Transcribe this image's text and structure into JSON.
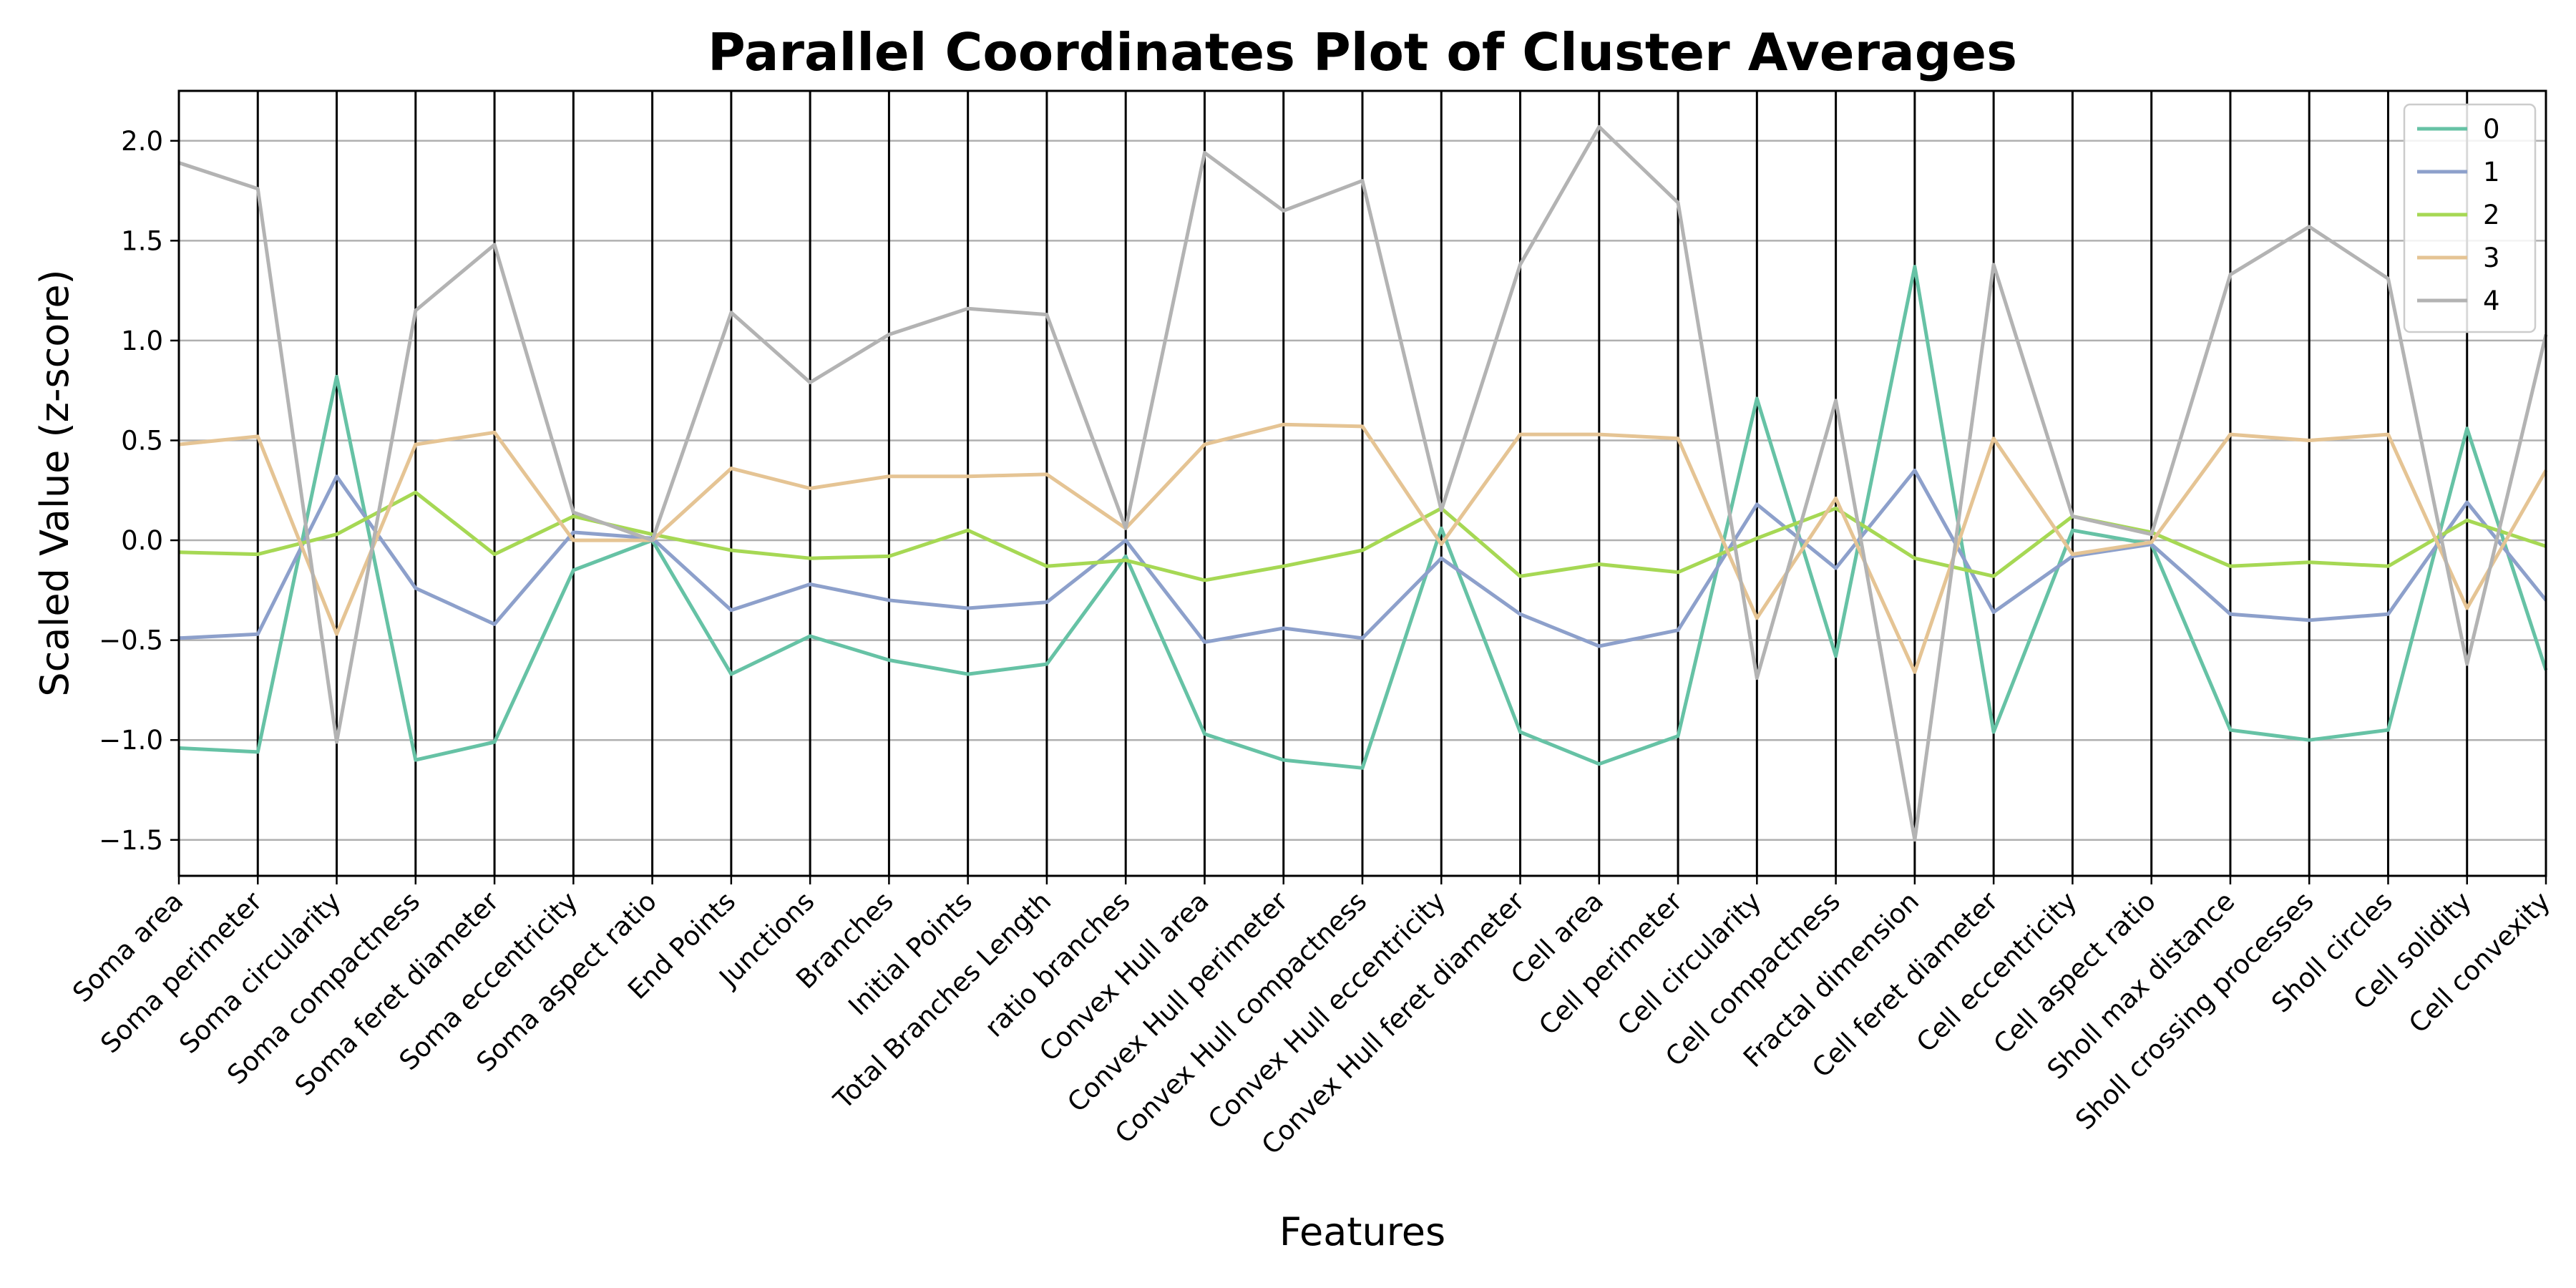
{
  "chart_data": {
    "type": "line",
    "title": "Parallel Coordinates Plot of Cluster Averages",
    "xlabel": "Features",
    "ylabel": "Scaled Value (z-score)",
    "ylim": [
      -1.68,
      2.25
    ],
    "yticks": [
      2.0,
      1.5,
      1.0,
      0.5,
      0.0,
      -0.5,
      -1.0,
      -1.5
    ],
    "ytick_labels": [
      "2.0",
      "1.5",
      "1.0",
      "0.5",
      "0.0",
      "−0.5",
      "−1.0",
      "−1.5"
    ],
    "grid": "horizontal",
    "legend_position": "top-right",
    "categories": [
      "Soma area",
      "Soma perimeter",
      "Soma circularity",
      "Soma compactness",
      "Soma feret diameter",
      "Soma eccentricity",
      "Soma aspect ratio",
      "End Points",
      "Junctions",
      "Branches",
      "Initial Points",
      "Total Branches Length",
      "ratio branches",
      "Convex Hull area",
      "Convex Hull perimeter",
      "Convex Hull compactness",
      "Convex Hull eccentricity",
      "Convex Hull feret diameter",
      "Cell area",
      "Cell perimeter",
      "Cell circularity",
      "Cell compactness",
      "Fractal dimension",
      "Cell feret diameter",
      "Cell eccentricity",
      "Cell aspect ratio",
      "Sholl max distance",
      "Sholl crossing processes",
      "Sholl circles",
      "Cell solidity",
      "Cell convexity"
    ],
    "series": [
      {
        "name": "0",
        "color": "#66c2a5",
        "values": [
          -1.04,
          -1.06,
          0.82,
          -1.1,
          -1.01,
          -0.15,
          0.0,
          -0.67,
          -0.48,
          -0.6,
          -0.67,
          -0.62,
          -0.08,
          -0.97,
          -1.1,
          -1.14,
          0.06,
          -0.96,
          -1.12,
          -0.98,
          0.71,
          -0.58,
          1.37,
          -0.96,
          0.05,
          -0.02,
          -0.95,
          -1.0,
          -0.95,
          0.56,
          -0.65
        ]
      },
      {
        "name": "1",
        "color": "#8da0cb",
        "values": [
          -0.49,
          -0.47,
          0.32,
          -0.24,
          -0.42,
          0.04,
          0.01,
          -0.35,
          -0.22,
          -0.3,
          -0.34,
          -0.31,
          0.0,
          -0.51,
          -0.44,
          -0.49,
          -0.09,
          -0.37,
          -0.53,
          -0.45,
          0.18,
          -0.14,
          0.35,
          -0.36,
          -0.08,
          -0.02,
          -0.37,
          -0.4,
          -0.37,
          0.19,
          -0.3
        ]
      },
      {
        "name": "2",
        "color": "#a6d854",
        "values": [
          -0.06,
          -0.07,
          0.03,
          0.24,
          -0.07,
          0.12,
          0.03,
          -0.05,
          -0.09,
          -0.08,
          0.05,
          -0.13,
          -0.1,
          -0.2,
          -0.13,
          -0.05,
          0.16,
          -0.18,
          -0.12,
          -0.16,
          0.01,
          0.16,
          -0.09,
          -0.18,
          0.12,
          0.04,
          -0.13,
          -0.11,
          -0.13,
          0.1,
          -0.03
        ]
      },
      {
        "name": "3",
        "color": "#e5c494",
        "values": [
          0.48,
          0.52,
          -0.47,
          0.48,
          0.54,
          0.0,
          0.0,
          0.36,
          0.26,
          0.32,
          0.32,
          0.33,
          0.06,
          0.48,
          0.58,
          0.57,
          -0.02,
          0.53,
          0.53,
          0.51,
          -0.39,
          0.21,
          -0.66,
          0.51,
          -0.07,
          -0.01,
          0.53,
          0.5,
          0.53,
          -0.34,
          0.35
        ]
      },
      {
        "name": "4",
        "color": "#b3b3b3",
        "values": [
          1.89,
          1.76,
          -1.01,
          1.15,
          1.48,
          0.14,
          0.0,
          1.14,
          0.79,
          1.03,
          1.16,
          1.13,
          0.06,
          1.94,
          1.65,
          1.8,
          0.15,
          1.38,
          2.07,
          1.69,
          -0.69,
          0.7,
          -1.5,
          1.38,
          0.12,
          0.03,
          1.33,
          1.57,
          1.31,
          -0.62,
          1.03
        ]
      }
    ]
  }
}
